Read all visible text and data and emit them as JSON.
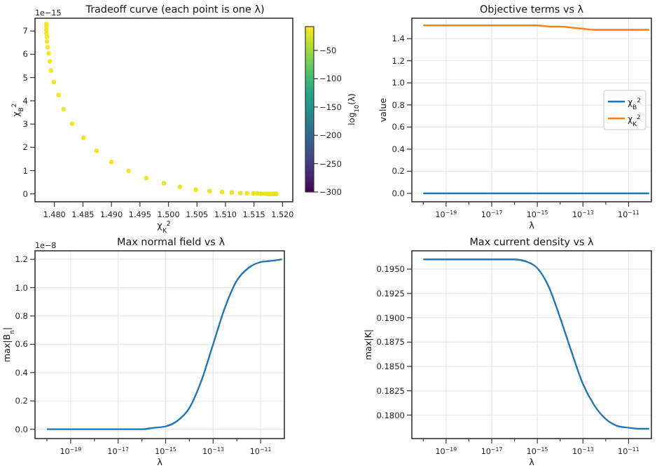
{
  "chart_data": [
    {
      "type": "scatter",
      "title": "Tradeoff curve (each point is one λ)",
      "xlabel": "χ$_{K}$$^{2}$",
      "ylabel": "χ$_{B}$$^{2}$",
      "clabel": "log$_{10}$(λ)",
      "annotations": [
        "1e−15"
      ],
      "marker": "circle",
      "x": [
        1.4786,
        1.4786,
        1.4786,
        1.4786,
        1.4787,
        1.4787,
        1.4788,
        1.479,
        1.4792,
        1.4794,
        1.4799,
        1.4807,
        1.4816,
        1.4831,
        1.4851,
        1.4874,
        1.49,
        1.493,
        1.4961,
        1.4992,
        1.502,
        1.5048,
        1.5072,
        1.5094,
        1.5111,
        1.5126,
        1.5138,
        1.5149,
        1.5156,
        1.5162,
        1.5168,
        1.5173,
        1.5177,
        1.5181,
        1.5184,
        1.5186,
        1.5188,
        1.5189
      ],
      "values": [
        7.3,
        7.2,
        7.05,
        6.9,
        6.75,
        6.55,
        6.3,
        6.04,
        5.7,
        5.3,
        4.8,
        4.25,
        3.64,
        3.02,
        2.41,
        1.85,
        1.37,
        0.99,
        0.68,
        0.46,
        0.3,
        0.18,
        0.12,
        0.08,
        0.06,
        0.04,
        0.03,
        0.02,
        0.02,
        0.01,
        0.01,
        0,
        0,
        0,
        0,
        0,
        0,
        0
      ],
      "cvalues": [
        -10.1,
        -10.4,
        -10.6,
        -10.9,
        -11.2,
        -11.4,
        -11.7,
        -12.0,
        -12.2,
        -12.5,
        -12.8,
        -13.0,
        -13.3,
        -13.6,
        -13.8,
        -14.1,
        -14.4,
        -14.6,
        -14.9,
        -15.2,
        -15.4,
        -15.7,
        -16.0,
        -16.2,
        -16.5,
        -16.8,
        -17.0,
        -17.3,
        -17.6,
        -17.8,
        -18.1,
        -18.4,
        -18.6,
        -18.9,
        -19.2,
        -19.4,
        -19.7,
        -20.0
      ],
      "xlim": [
        1.4766,
        1.5218
      ],
      "xticks": [
        {
          "value": 1.48,
          "label": "1.480"
        },
        {
          "value": 1.485,
          "label": "1.485"
        },
        {
          "value": 1.49,
          "label": "1.490"
        },
        {
          "value": 1.495,
          "label": "1.495"
        },
        {
          "value": 1.5,
          "label": "1.500"
        },
        {
          "value": 1.505,
          "label": "1.505"
        },
        {
          "value": 1.51,
          "label": "1.510"
        },
        {
          "value": 1.515,
          "label": "1.515"
        },
        {
          "value": 1.52,
          "label": "1.520"
        }
      ],
      "ylim": [
        -0.34,
        7.55
      ],
      "yticks": [
        0,
        1,
        2,
        3,
        4,
        5,
        6,
        7
      ],
      "clim": [
        -300,
        -8
      ],
      "cticks": [
        {
          "value": -50,
          "label": "−50"
        },
        {
          "value": -100,
          "label": "−100"
        },
        {
          "value": -150,
          "label": "−150"
        },
        {
          "value": -200,
          "label": "−200"
        },
        {
          "value": -250,
          "label": "−250"
        },
        {
          "value": -300,
          "label": "−300"
        }
      ]
    },
    {
      "type": "line",
      "title": "Objective terms vs λ",
      "xlabel": "λ",
      "ylabel": "value",
      "log": "x",
      "grid": true,
      "legend": "right",
      "x": [
        1e-20,
        1e-19,
        1e-18,
        1e-17,
        1e-16,
        3.16e-16,
        1e-15,
        3.16e-15,
        1e-14,
        3.16e-14,
        1e-13,
        3.16e-13,
        1e-12,
        3.16e-12,
        1e-11,
        3.16e-11,
        7.94e-11
      ],
      "series": [
        {
          "name": "χ$_{B}$$^{2}$",
          "color": "#1f77b4",
          "values": [
            0,
            0,
            0,
            0,
            0,
            0,
            0,
            0,
            0,
            0,
            0,
            0,
            0,
            0,
            0,
            0,
            0
          ]
        },
        {
          "name": "χ$_{K}$$^{2}$",
          "color": "#ff7f0e",
          "values": [
            1.52,
            1.52,
            1.52,
            1.52,
            1.52,
            1.52,
            1.52,
            1.51,
            1.51,
            1.5,
            1.49,
            1.48,
            1.48,
            1.48,
            1.48,
            1.48,
            1.48
          ]
        }
      ],
      "xlim": [
        3.16e-21,
        1e-10
      ],
      "xticks": [
        {
          "value": 1e-20,
          "label": null
        },
        {
          "value": 1e-19,
          "label": "10$^{−19}$"
        },
        {
          "value": 1e-18,
          "label": null
        },
        {
          "value": 1e-17,
          "label": "10$^{−17}$"
        },
        {
          "value": 1e-16,
          "label": null
        },
        {
          "value": 1e-15,
          "label": "10$^{−15}$"
        },
        {
          "value": 1e-14,
          "label": null
        },
        {
          "value": 1e-13,
          "label": "10$^{−13}$"
        },
        {
          "value": 1e-12,
          "label": null
        },
        {
          "value": 1e-11,
          "label": "10$^{−11}$"
        }
      ],
      "ylim": [
        -0.076,
        1.585
      ],
      "yticks": [
        {
          "value": 0,
          "label": "0.0"
        },
        {
          "value": 0.2,
          "label": "0.2"
        },
        {
          "value": 0.4,
          "label": "0.4"
        },
        {
          "value": 0.6,
          "label": "0.6"
        },
        {
          "value": 0.8,
          "label": "0.8"
        },
        {
          "value": 1,
          "label": "1.0"
        },
        {
          "value": 1.2,
          "label": "1.2"
        },
        {
          "value": 1.4,
          "label": "1.4"
        }
      ]
    },
    {
      "type": "line",
      "title": "Max normal field vs λ",
      "xlabel": "λ",
      "ylabel": "max|B$_{n}$|",
      "annotations": [
        "1e−8"
      ],
      "log": "x",
      "grid": true,
      "x": [
        1e-20,
        1e-19,
        1e-18,
        1e-17,
        1e-16,
        3.16e-16,
        1e-15,
        3.16e-15,
        1e-14,
        3.16e-14,
        1e-13,
        3.16e-13,
        1e-12,
        3.16e-12,
        1e-11,
        3.16e-11,
        7.94e-11
      ],
      "series": [
        {
          "color": "#1f77b4",
          "values": [
            0,
            0,
            0,
            0,
            0,
            0.01,
            0.02,
            0.06,
            0.15,
            0.34,
            0.6,
            0.86,
            1.05,
            1.14,
            1.18,
            1.19,
            1.2
          ]
        }
      ],
      "xlim": [
        3.16e-21,
        1e-10
      ],
      "xticks": [
        {
          "value": 1e-20,
          "label": null
        },
        {
          "value": 1e-19,
          "label": "10$^{−19}$"
        },
        {
          "value": 1e-18,
          "label": null
        },
        {
          "value": 1e-17,
          "label": "10$^{−17}$"
        },
        {
          "value": 1e-16,
          "label": null
        },
        {
          "value": 1e-15,
          "label": "10$^{−15}$"
        },
        {
          "value": 1e-14,
          "label": null
        },
        {
          "value": 1e-13,
          "label": "10$^{−13}$"
        },
        {
          "value": 1e-12,
          "label": null
        },
        {
          "value": 1e-11,
          "label": "10$^{−11}$"
        }
      ],
      "ylim": [
        -0.066,
        1.26
      ],
      "yticks": [
        {
          "value": 0,
          "label": "0.0"
        },
        {
          "value": 0.2,
          "label": "0.2"
        },
        {
          "value": 0.4,
          "label": "0.4"
        },
        {
          "value": 0.6,
          "label": "0.6"
        },
        {
          "value": 0.8,
          "label": "0.8"
        },
        {
          "value": 1,
          "label": "1.0"
        },
        {
          "value": 1.2,
          "label": "1.2"
        }
      ]
    },
    {
      "type": "line",
      "title": "Max current density vs λ",
      "xlabel": "λ",
      "ylabel": "max|K|",
      "log": "x",
      "grid": true,
      "x": [
        1e-20,
        1e-19,
        1e-18,
        1e-17,
        1e-16,
        3.16e-16,
        1e-15,
        3.16e-15,
        1e-14,
        3.16e-14,
        1e-13,
        3.16e-13,
        1e-12,
        3.16e-12,
        1e-11,
        3.16e-11,
        7.94e-11
      ],
      "series": [
        {
          "color": "#1f77b4",
          "values": [
            0.196,
            0.196,
            0.196,
            0.196,
            0.196,
            0.1958,
            0.1951,
            0.1932,
            0.19,
            0.1865,
            0.1832,
            0.181,
            0.1796,
            0.1789,
            0.1787,
            0.1786,
            0.1786
          ]
        }
      ],
      "xlim": [
        3.16e-21,
        1e-10
      ],
      "xticks": [
        {
          "value": 1e-20,
          "label": null
        },
        {
          "value": 1e-19,
          "label": "10$^{−19}$"
        },
        {
          "value": 1e-18,
          "label": null
        },
        {
          "value": 1e-17,
          "label": "10$^{−17}$"
        },
        {
          "value": 1e-16,
          "label": null
        },
        {
          "value": 1e-15,
          "label": "10$^{−15}$"
        },
        {
          "value": 1e-14,
          "label": null
        },
        {
          "value": 1e-13,
          "label": "10$^{−13}$"
        },
        {
          "value": 1e-12,
          "label": null
        },
        {
          "value": 1e-11,
          "label": "10$^{−11}$"
        }
      ],
      "ylim": [
        0.17759,
        0.19688
      ],
      "yticks": [
        {
          "value": 0.18,
          "label": "0.1800"
        },
        {
          "value": 0.1825,
          "label": "0.1825"
        },
        {
          "value": 0.185,
          "label": "0.1850"
        },
        {
          "value": 0.1875,
          "label": "0.1875"
        },
        {
          "value": 0.19,
          "label": "0.1900"
        },
        {
          "value": 0.1925,
          "label": "0.1925"
        },
        {
          "value": 0.195,
          "label": "0.1950"
        }
      ]
    }
  ]
}
